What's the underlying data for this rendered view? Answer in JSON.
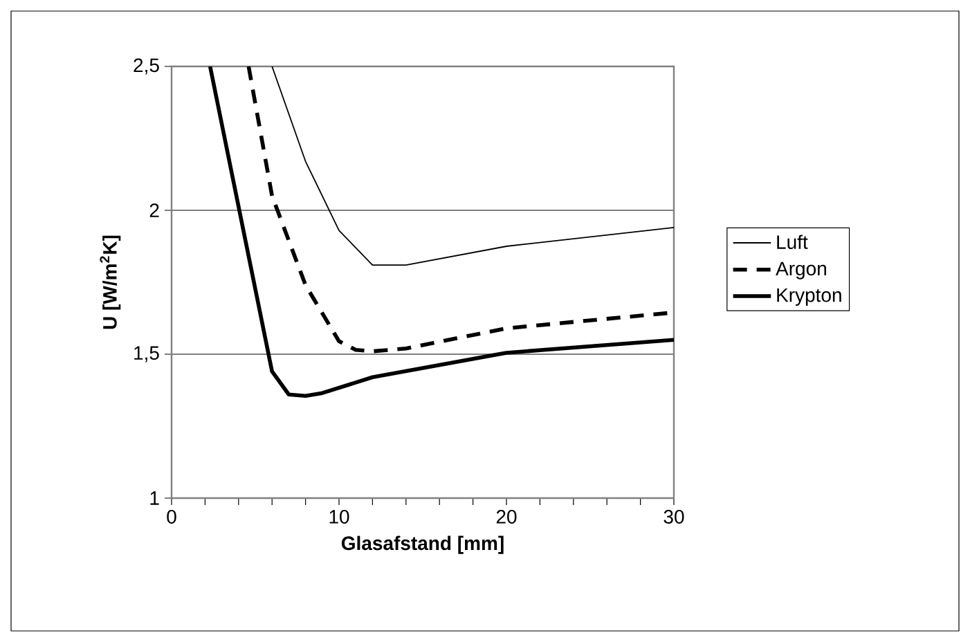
{
  "chart_data": {
    "type": "line",
    "xlabel": "Glasafstand [mm]",
    "ylabel": "U [W/m$^{2}$K]",
    "xlim": [
      0,
      30
    ],
    "ylim": [
      1,
      2.5
    ],
    "xticks": [
      0,
      {
        "value": 2,
        "label": null
      },
      {
        "value": 4,
        "label": null
      },
      {
        "value": 6,
        "label": null
      },
      {
        "value": 8,
        "label": null
      },
      10,
      {
        "value": 12,
        "label": null
      },
      {
        "value": 14,
        "label": null
      },
      {
        "value": 16,
        "label": null
      },
      {
        "value": 18,
        "label": null
      },
      20,
      {
        "value": 22,
        "label": null
      },
      {
        "value": 24,
        "label": null
      },
      {
        "value": 26,
        "label": null
      },
      {
        "value": 28,
        "label": null
      },
      30
    ],
    "yticks": [
      1,
      {
        "value": 1.5,
        "label": "1,5"
      },
      2,
      {
        "value": 2.5,
        "label": "2,5"
      }
    ],
    "grid": "y",
    "legend": "right",
    "series": [
      {
        "name": "Luft",
        "color": "#000000",
        "line_style": "solid",
        "x": [
          6,
          8,
          10,
          12,
          14,
          20,
          30
        ],
        "values": [
          2.5,
          2.17,
          1.93,
          1.81,
          1.81,
          1.875,
          1.94
        ]
      },
      {
        "name": "Argon",
        "color": "#000000",
        "line_style": "dashed",
        "x": [
          4.6,
          6,
          8,
          10,
          11,
          12,
          14,
          20,
          30
        ],
        "values": [
          2.5,
          2.05,
          1.74,
          1.545,
          1.515,
          1.51,
          1.52,
          1.59,
          1.645
        ]
      },
      {
        "name": "Krypton",
        "color": "#000000",
        "line_style": "solid",
        "x": [
          2.3,
          6,
          7,
          8,
          9,
          12,
          20,
          30
        ],
        "values": [
          2.5,
          1.44,
          1.36,
          1.355,
          1.365,
          1.42,
          1.505,
          1.55
        ]
      }
    ]
  }
}
